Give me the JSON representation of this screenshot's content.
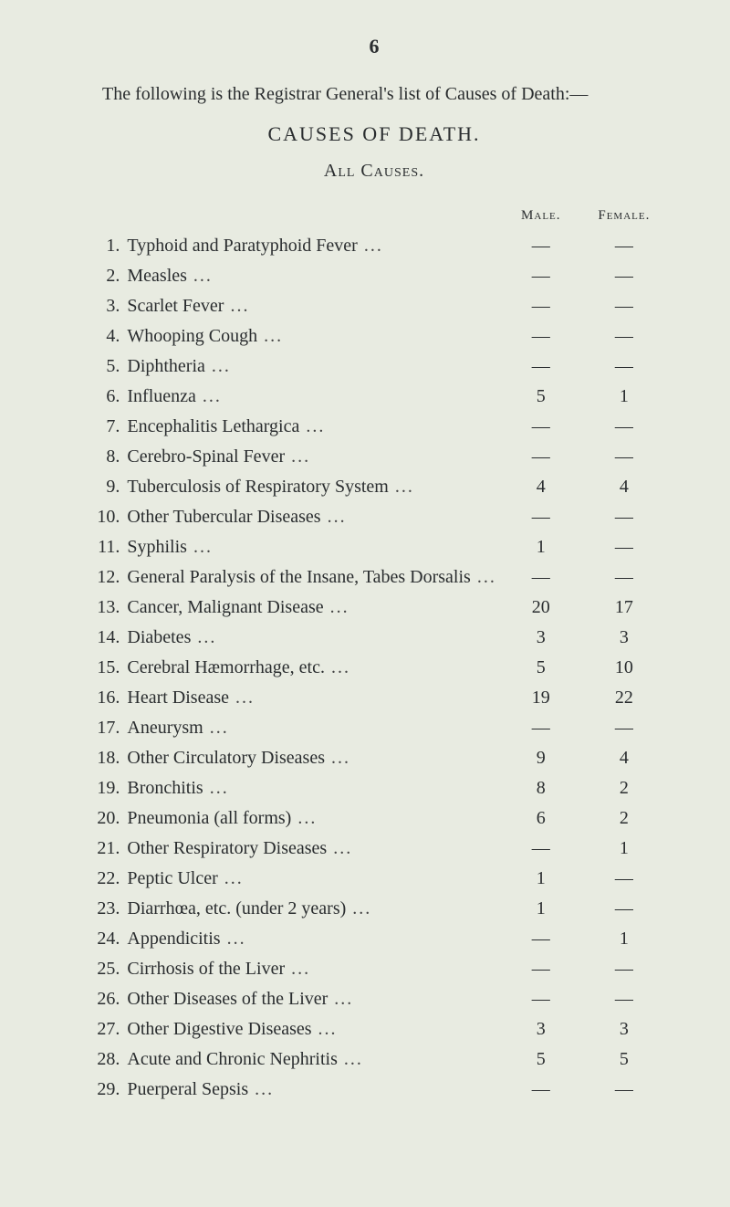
{
  "page_number": "6",
  "intro": "The following is the Registrar General's list of Causes of Death:—",
  "title": "CAUSES OF DEATH.",
  "subtitle": "All Causes.",
  "header": {
    "male": "Male.",
    "female": "Female."
  },
  "rows": [
    {
      "n": "1.",
      "cause": "Typhoid and Paratyphoid Fever",
      "male": "—",
      "female": "—"
    },
    {
      "n": "2.",
      "cause": "Measles",
      "male": "—",
      "female": "—"
    },
    {
      "n": "3.",
      "cause": "Scarlet Fever",
      "male": "—",
      "female": "—"
    },
    {
      "n": "4.",
      "cause": "Whooping Cough",
      "male": "—",
      "female": "—"
    },
    {
      "n": "5.",
      "cause": "Diphtheria",
      "male": "—",
      "female": "—"
    },
    {
      "n": "6.",
      "cause": "Influenza",
      "male": "5",
      "female": "1"
    },
    {
      "n": "7.",
      "cause": "Encephalitis Lethargica",
      "male": "—",
      "female": "—"
    },
    {
      "n": "8.",
      "cause": "Cerebro-Spinal Fever",
      "male": "—",
      "female": "—"
    },
    {
      "n": "9.",
      "cause": "Tuberculosis of Respiratory System",
      "male": "4",
      "female": "4"
    },
    {
      "n": "10.",
      "cause": "Other Tubercular Diseases",
      "male": "—",
      "female": "—"
    },
    {
      "n": "11.",
      "cause": "Syphilis",
      "male": "1",
      "female": "—"
    },
    {
      "n": "12.",
      "cause": "General Paralysis of the Insane, Tabes Dorsalis",
      "male": "—",
      "female": "—"
    },
    {
      "n": "13.",
      "cause": "Cancer, Malignant Disease",
      "male": "20",
      "female": "17"
    },
    {
      "n": "14.",
      "cause": "Diabetes",
      "male": "3",
      "female": "3"
    },
    {
      "n": "15.",
      "cause": "Cerebral Hæmorrhage, etc.",
      "male": "5",
      "female": "10"
    },
    {
      "n": "16.",
      "cause": "Heart Disease",
      "male": "19",
      "female": "22"
    },
    {
      "n": "17.",
      "cause": "Aneurysm",
      "male": "—",
      "female": "—"
    },
    {
      "n": "18.",
      "cause": "Other Circulatory Diseases",
      "male": "9",
      "female": "4"
    },
    {
      "n": "19.",
      "cause": "Bronchitis",
      "male": "8",
      "female": "2"
    },
    {
      "n": "20.",
      "cause": "Pneumonia (all forms)",
      "male": "6",
      "female": "2"
    },
    {
      "n": "21.",
      "cause": "Other Respiratory Diseases",
      "male": "—",
      "female": "1"
    },
    {
      "n": "22.",
      "cause": "Peptic Ulcer",
      "male": "1",
      "female": "—"
    },
    {
      "n": "23.",
      "cause": "Diarrhœa, etc. (under 2 years)",
      "male": "1",
      "female": "—"
    },
    {
      "n": "24.",
      "cause": "Appendicitis",
      "male": "—",
      "female": "1"
    },
    {
      "n": "25.",
      "cause": "Cirrhosis of the Liver",
      "male": "—",
      "female": "—"
    },
    {
      "n": "26.",
      "cause": "Other Diseases of the Liver",
      "male": "—",
      "female": "—"
    },
    {
      "n": "27.",
      "cause": "Other Digestive Diseases",
      "male": "3",
      "female": "3"
    },
    {
      "n": "28.",
      "cause": "Acute and Chronic Nephritis",
      "male": "5",
      "female": "5"
    },
    {
      "n": "29.",
      "cause": "Puerperal Sepsis",
      "male": "—",
      "female": "—"
    }
  ],
  "layout": {
    "background_color": "#e8ebe1",
    "text_color": "#2a2d2f",
    "body_fontsize": 20,
    "header_fontsize": 15,
    "row_vpad": 5,
    "col_widths": {
      "num": 40,
      "male": 90,
      "female": 90
    }
  }
}
